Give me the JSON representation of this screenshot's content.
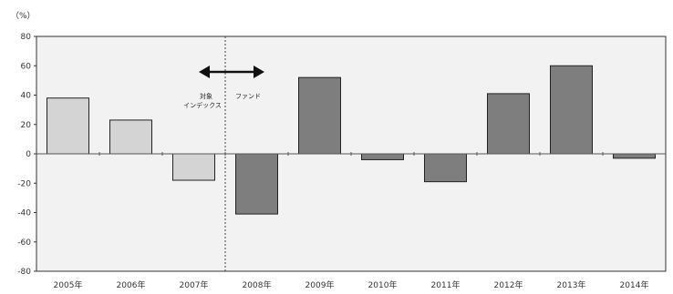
{
  "chart_data": {
    "type": "bar",
    "unit_label": "（%）",
    "categories": [
      "2005年",
      "2006年",
      "2007年",
      "2008年",
      "2009年",
      "2010年",
      "2011年",
      "2012年",
      "2013年",
      "2014年"
    ],
    "series": [
      {
        "values": [
          38,
          23,
          -18,
          -41,
          52,
          -4,
          -19,
          41,
          60,
          -3
        ]
      }
    ],
    "bar_colors": {
      "index_period": "#d4d4d4",
      "fund_period": "#7e7e7e",
      "outline": "#222222"
    },
    "index_period_count": 3,
    "ylim": [
      -80,
      80
    ],
    "yticks": [
      -80,
      -60,
      -40,
      -20,
      0,
      20,
      40,
      60,
      80
    ],
    "divider_after_category": "2007年",
    "annotation": {
      "left_label_line1": "対象",
      "left_label_line2": "インデックス",
      "right_label": "ファンド"
    },
    "grid": false,
    "legend": "none"
  }
}
